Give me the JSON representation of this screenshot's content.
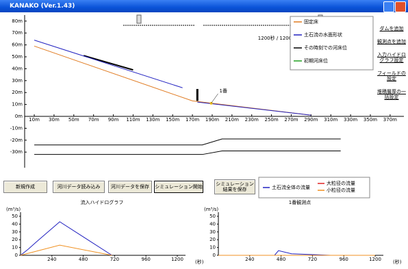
{
  "window": {
    "title": "KANAKO (Ver.1.43)"
  },
  "time_display": "1200秒 / 1200秒",
  "side_buttons": [
    "ダムを追加",
    "観測点を追加",
    "入力ハイドログラフ設定",
    "フィールドの設定",
    "堆積層厚の一括設定"
  ],
  "buttons": [
    "新規作成",
    "河川データ読み込み",
    "河川データを保存",
    "シミュレーション開始",
    "シミュレーション結果を保存"
  ],
  "profile": {
    "legend": [
      {
        "label": "固定床",
        "color": "#e07a20"
      },
      {
        "label": "土石流の水面形状",
        "color": "#2020c0"
      },
      {
        "label": "その時刻での河床位",
        "color": "#000000"
      },
      {
        "label": "初期河床位",
        "color": "#20a020"
      }
    ],
    "yticks": [
      {
        "value": 80,
        "label": "80m"
      },
      {
        "value": 70,
        "label": "70m"
      },
      {
        "value": 60,
        "label": "60m"
      },
      {
        "value": 50,
        "label": "50m"
      },
      {
        "value": 40,
        "label": "40m"
      },
      {
        "value": 30,
        "label": "30m"
      },
      {
        "value": 20,
        "label": "20m"
      },
      {
        "value": 10,
        "label": "10m"
      },
      {
        "value": 0,
        "label": "0m"
      },
      {
        "value": -10,
        "label": "-10m"
      },
      {
        "value": -20,
        "label": "-20m"
      },
      {
        "value": -30,
        "label": "-30m"
      }
    ],
    "xticks": [
      {
        "value": 10,
        "label": "10m"
      },
      {
        "value": 30,
        "label": "30m"
      },
      {
        "value": 50,
        "label": "50m"
      },
      {
        "value": 70,
        "label": "70m"
      },
      {
        "value": 90,
        "label": "90m"
      },
      {
        "value": 110,
        "label": "110m"
      },
      {
        "value": 130,
        "label": "130m"
      },
      {
        "value": 150,
        "label": "150m"
      },
      {
        "value": 170,
        "label": "170m"
      },
      {
        "value": 190,
        "label": "190m"
      },
      {
        "value": 210,
        "label": "210m"
      },
      {
        "value": 230,
        "label": "230m"
      },
      {
        "value": 250,
        "label": "250m"
      },
      {
        "value": 270,
        "label": "270m"
      },
      {
        "value": 290,
        "label": "290m"
      },
      {
        "value": 310,
        "label": "310m"
      },
      {
        "value": 330,
        "label": "330m"
      },
      {
        "value": 350,
        "label": "350m"
      },
      {
        "value": 370,
        "label": "370m"
      }
    ],
    "lines": [
      {
        "color": "#e07a20",
        "x": [
          10,
          170,
          290
        ],
        "values": [
          59,
          13,
          1
        ]
      },
      {
        "color": "#000000",
        "x": [
          60,
          110
        ],
        "values": [
          51,
          39
        ]
      },
      {
        "color": "#2020c0",
        "x": [
          10,
          160,
          168,
          175,
          290
        ],
        "values": [
          64,
          24,
          null,
          12,
          1
        ]
      },
      {
        "color": "#000000",
        "x": [
          10,
          180,
          200,
          320
        ],
        "values": [
          -24,
          -24,
          -19,
          -19
        ]
      },
      {
        "color": "#000000",
        "x": [
          10,
          180,
          200,
          320
        ],
        "values": [
          -32,
          -32,
          -29,
          -29
        ]
      }
    ],
    "wall": {
      "x": 175,
      "bottom": 13,
      "top": 23
    },
    "observation": {
      "label": "1番",
      "x": 189,
      "value": 11
    }
  },
  "legend_flow": [
    {
      "label": "土石流全体の流量",
      "color": "#2020c0"
    },
    {
      "label": "大粒径の流量",
      "color": "#e02020"
    },
    {
      "label": "小粒径の流量",
      "color": "#f09020"
    }
  ],
  "hydrographs": [
    {
      "title": "流入ハイドログラフ",
      "unit": "(m³/s)",
      "x_unit": "(秒)",
      "xlim": [
        0,
        1200
      ],
      "ylim": [
        0,
        50
      ],
      "yticks": [
        0,
        10,
        20,
        30,
        40,
        50
      ],
      "xticks": [
        240,
        480,
        720,
        960,
        1200
      ],
      "series": [
        {
          "color": "#2020c0",
          "x": [
            0,
            60,
            120,
            300,
            700
          ],
          "values": [
            0,
            8,
            17,
            43,
            0
          ]
        },
        {
          "color": "#f09020",
          "x": [
            0,
            300,
            700
          ],
          "values": [
            0,
            13,
            0
          ]
        }
      ]
    },
    {
      "title": "1番観測点",
      "unit": "(m³/s)",
      "x_unit": "(秒)",
      "xlim": [
        0,
        1200
      ],
      "ylim": [
        0,
        50
      ],
      "yticks": [
        0,
        10,
        20,
        30,
        40,
        50
      ],
      "xticks": [
        240,
        480,
        720,
        960,
        1200
      ],
      "series": [
        {
          "color": "#2020c0",
          "x": [
            0,
            430,
            460,
            560,
            860
          ],
          "values": [
            0,
            0,
            6,
            2,
            0
          ]
        },
        {
          "color": "#f09020",
          "x": [
            0,
            1200
          ],
          "values": [
            0,
            0
          ]
        }
      ]
    }
  ]
}
